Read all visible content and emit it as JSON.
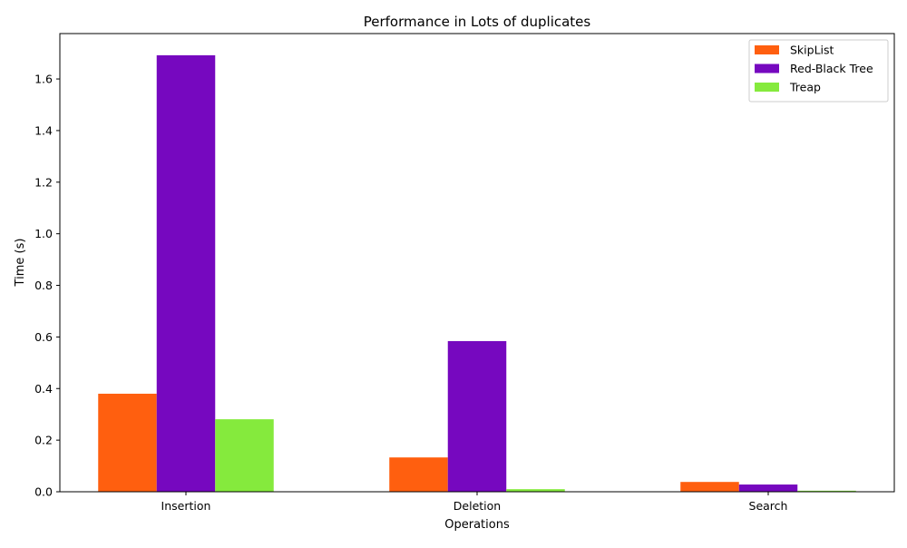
{
  "chart_data": {
    "type": "bar",
    "title": "Performance in Lots of duplicates",
    "xlabel": "Operations",
    "ylabel": "Time (s)",
    "categories": [
      "Insertion",
      "Deletion",
      "Search"
    ],
    "series": [
      {
        "name": "SkipList",
        "color": "#ff5f0f",
        "values": [
          0.38,
          0.133,
          0.038
        ]
      },
      {
        "name": "Red-Black Tree",
        "color": "#7608bf",
        "values": [
          1.692,
          0.584,
          0.028
        ]
      },
      {
        "name": "Treap",
        "color": "#85ea3d",
        "values": [
          0.281,
          0.01,
          0.004
        ]
      }
    ],
    "ylim": [
      0,
      1.776
    ],
    "yticks": [
      "0.0",
      "0.2",
      "0.4",
      "0.6",
      "0.8",
      "1.0",
      "1.2",
      "1.4",
      "1.6"
    ],
    "grid": false,
    "legend_position": "top-right"
  }
}
